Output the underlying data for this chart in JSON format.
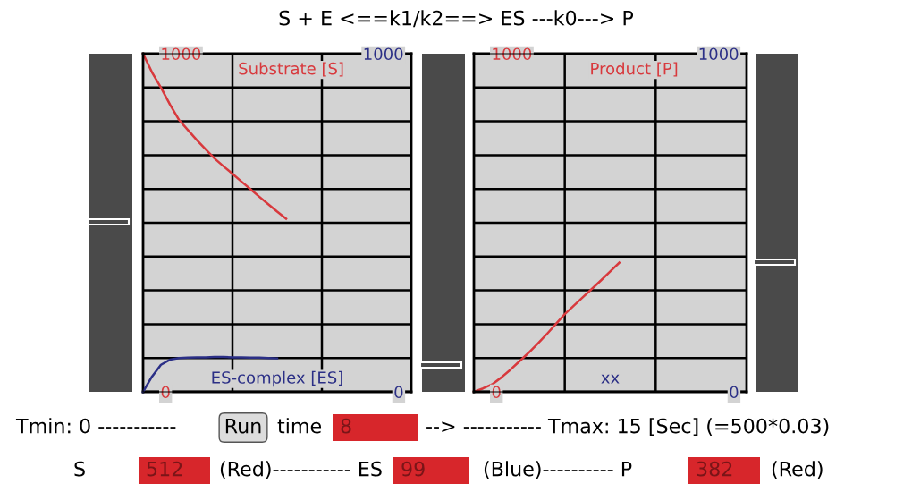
{
  "chart_data": [
    {
      "type": "line",
      "title": "S + E <==k1/k2==> ES ---k0---> P",
      "categories": [
        null,
        null,
        null,
        null,
        null,
        null,
        null,
        null,
        null,
        null,
        null,
        null,
        null,
        null,
        null,
        null,
        null,
        null,
        null,
        null,
        null,
        null,
        null,
        null,
        null,
        null,
        null,
        null,
        null,
        null,
        null
      ],
      "series": [
        {
          "name": "Substrate [S]",
          "color": "#d8393d",
          "axis": "y",
          "values": [
            1000,
            945,
            900,
            850,
            805,
            775,
            745,
            717,
            690,
            667,
            645,
            622,
            600,
            577,
            555,
            533,
            512,
            null,
            null,
            null,
            null,
            null,
            null,
            null,
            null,
            null,
            null,
            null,
            null,
            null,
            null
          ]
        },
        {
          "name": "ES-complex [ES]",
          "color": "#2b2f86",
          "axis": "y2",
          "values": [
            0,
            45,
            80,
            95,
            100,
            101,
            102,
            102,
            103,
            103,
            102,
            102,
            101,
            101,
            100,
            99,
            null,
            null,
            null,
            null,
            null,
            null,
            null,
            null,
            null,
            null,
            null,
            null,
            null,
            null,
            null
          ]
        }
      ],
      "ylim": [
        0,
        1000
      ],
      "yticks": [
        0,
        {
          "value": 100,
          "label": null
        },
        {
          "value": 200,
          "label": null
        },
        {
          "value": 300,
          "label": null
        },
        {
          "value": 400,
          "label": null
        },
        {
          "value": 500,
          "label": null
        },
        {
          "value": 600,
          "label": null
        },
        {
          "value": 700,
          "label": null
        },
        {
          "value": 800,
          "label": null
        },
        {
          "value": 900,
          "label": null
        },
        1000
      ],
      "y2lim": [
        0,
        1000
      ],
      "y2ticks": [
        0,
        1000
      ],
      "tick_labels": "y",
      "grid": true,
      "legend": false,
      "marker": "none",
      "line_style": "solid",
      "annotations": [
        "Tmin: 0 -----------",
        "Run",
        "time",
        "8",
        "--> ----------- Tmax: 15 [Sec] (=500*0.03)",
        "S",
        "512",
        "(Red)----------- ES",
        "99",
        "(Blue)---------- P",
        "382",
        "(Red)"
      ]
    },
    {
      "type": "line",
      "xlabel": "xx",
      "categories": [
        null,
        null,
        null,
        null,
        null,
        null,
        null,
        null,
        null,
        null,
        null,
        null,
        null,
        null,
        null,
        null,
        null,
        null,
        null,
        null,
        null,
        null,
        null,
        null,
        null,
        null,
        null,
        null,
        null,
        null,
        null
      ],
      "series": [
        {
          "name": "Product [P]",
          "color": "#d8393d",
          "axis": "y",
          "values": [
            0,
            10,
            22,
            42,
            65,
            90,
            115,
            142,
            170,
            200,
            230,
            255,
            280,
            305,
            330,
            356,
            382,
            null,
            null,
            null,
            null,
            null,
            null,
            null,
            null,
            null,
            null,
            null,
            null,
            null,
            null
          ]
        }
      ],
      "ylim": [
        0,
        1000
      ],
      "yticks": [
        0,
        {
          "value": 100,
          "label": null
        },
        {
          "value": 200,
          "label": null
        },
        {
          "value": 300,
          "label": null
        },
        {
          "value": 400,
          "label": null
        },
        {
          "value": 500,
          "label": null
        },
        {
          "value": 600,
          "label": null
        },
        {
          "value": 700,
          "label": null
        },
        {
          "value": 800,
          "label": null
        },
        {
          "value": 900,
          "label": null
        },
        1000
      ],
      "y2lim": [
        0,
        1000
      ],
      "y2ticks": [
        0,
        1000
      ],
      "tick_labels": "y",
      "grid": true,
      "legend": false,
      "marker": "none",
      "line_style": "solid"
    }
  ]
}
